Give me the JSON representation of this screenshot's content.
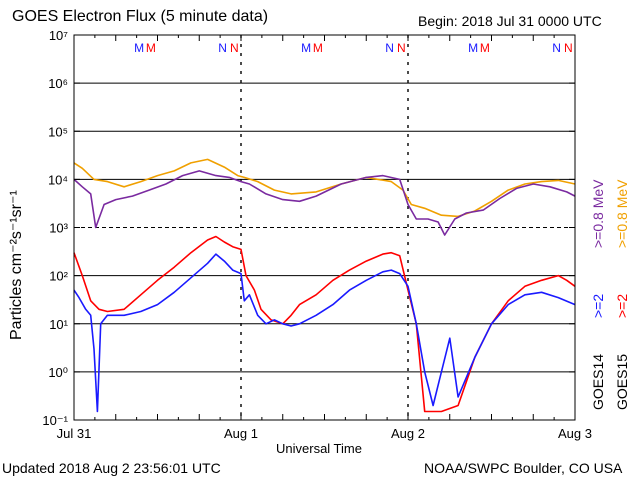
{
  "chart_data": {
    "type": "line",
    "title": "GOES Electron Flux (5 minute data)",
    "begin_label": "Begin: 2018 Jul 31 0000 UTC",
    "xlabel": "Universal Time",
    "ylabel": "Particles cm⁻²s⁻¹sr⁻¹",
    "y_scale": "log",
    "ylim": [
      0.1,
      10000000
    ],
    "y_ticks": [
      "10⁻¹",
      "10⁰",
      "10¹",
      "10²",
      "10³",
      "10⁴",
      "10⁵",
      "10⁶",
      "10⁷"
    ],
    "x_range_days": [
      0,
      3
    ],
    "x_ticks": [
      {
        "day": 0,
        "label": "Jul 31"
      },
      {
        "day": 1,
        "label": "Aug 1"
      },
      {
        "day": 2,
        "label": "Aug 2"
      },
      {
        "day": 3,
        "label": "Aug 3"
      }
    ],
    "grid": "horizontal at each decade; dashed line at 10³",
    "markers": [
      {
        "day": 0.39,
        "text": "M",
        "color": "#1a1aff"
      },
      {
        "day": 0.46,
        "text": "M",
        "color": "#ff0000"
      },
      {
        "day": 0.89,
        "text": "N",
        "color": "#1a1aff"
      },
      {
        "day": 0.96,
        "text": "N",
        "color": "#ff0000"
      },
      {
        "day": 1.39,
        "text": "M",
        "color": "#1a1aff"
      },
      {
        "day": 1.46,
        "text": "M",
        "color": "#ff0000"
      },
      {
        "day": 1.89,
        "text": "N",
        "color": "#1a1aff"
      },
      {
        "day": 1.96,
        "text": "N",
        "color": "#ff0000"
      },
      {
        "day": 2.39,
        "text": "M",
        "color": "#1a1aff"
      },
      {
        "day": 2.46,
        "text": "M",
        "color": "#ff0000"
      },
      {
        "day": 2.89,
        "text": "N",
        "color": "#1a1aff"
      },
      {
        "day": 2.96,
        "text": "N",
        "color": "#ff0000"
      }
    ],
    "legend": {
      "placement": "right side, vertical",
      "groups": [
        {
          "label": "GOES14",
          "channels": [
            {
              "text": ">=2",
              "color": "#1a1aff"
            },
            {
              "text": ">=0.8 MeV",
              "color": "#7a2aa0"
            }
          ]
        },
        {
          "label": "GOES15",
          "channels": [
            {
              "text": ">=2",
              "color": "#ff0000"
            },
            {
              "text": ">=0.8 MeV",
              "color": "#f0a000"
            }
          ]
        }
      ]
    },
    "series": [
      {
        "color": "#f0a000",
        "x": [
          0,
          0.05,
          0.12,
          0.2,
          0.3,
          0.4,
          0.5,
          0.6,
          0.7,
          0.8,
          0.9,
          0.98,
          1.02,
          1.1,
          1.2,
          1.3,
          1.45,
          1.6,
          1.75,
          1.9,
          1.97,
          2.02,
          2.1,
          2.2,
          2.3,
          2.4,
          2.5,
          2.6,
          2.7,
          2.8,
          2.9,
          3.0
        ],
        "y": [
          22000,
          17000,
          10000,
          9000,
          7000,
          9000,
          12000,
          15000,
          22000,
          26000,
          18000,
          12000,
          11000,
          9000,
          6000,
          5000,
          5500,
          8000,
          11000,
          9000,
          6000,
          3000,
          2500,
          1800,
          1700,
          2200,
          3500,
          6000,
          8000,
          9000,
          9500,
          8000
        ]
      },
      {
        "color": "#7a2aa0",
        "x": [
          0,
          0.05,
          0.1,
          0.13,
          0.18,
          0.25,
          0.35,
          0.45,
          0.55,
          0.65,
          0.75,
          0.85,
          0.93,
          1.0,
          1.05,
          1.15,
          1.25,
          1.35,
          1.45,
          1.6,
          1.75,
          1.85,
          1.95,
          2.0,
          2.05,
          2.12,
          2.18,
          2.22,
          2.28,
          2.35,
          2.45,
          2.55,
          2.65,
          2.75,
          2.85,
          2.95,
          3.0
        ],
        "y": [
          10000,
          7000,
          5000,
          1000,
          3000,
          3800,
          4500,
          6000,
          8000,
          12000,
          15000,
          12000,
          11000,
          9000,
          8000,
          5000,
          3800,
          3500,
          4500,
          8000,
          11000,
          12000,
          10000,
          3000,
          1500,
          1500,
          1300,
          700,
          1500,
          2000,
          2300,
          4000,
          6500,
          8000,
          7000,
          5500,
          4500
        ]
      },
      {
        "color": "#ff0000",
        "x": [
          0,
          0.05,
          0.1,
          0.15,
          0.2,
          0.3,
          0.4,
          0.5,
          0.6,
          0.7,
          0.8,
          0.85,
          0.9,
          0.95,
          1.0,
          1.03,
          1.08,
          1.12,
          1.18,
          1.25,
          1.3,
          1.35,
          1.45,
          1.55,
          1.65,
          1.75,
          1.85,
          1.9,
          1.95,
          2.0,
          2.05,
          2.1,
          2.15,
          2.2,
          2.3,
          2.4,
          2.5,
          2.6,
          2.7,
          2.8,
          2.9,
          2.95,
          3.0
        ],
        "y": [
          300,
          100,
          30,
          20,
          18,
          20,
          40,
          80,
          150,
          300,
          550,
          650,
          500,
          400,
          350,
          100,
          50,
          20,
          12,
          10,
          15,
          25,
          40,
          80,
          130,
          200,
          280,
          300,
          260,
          50,
          10,
          0.15,
          0.15,
          0.15,
          0.2,
          2,
          10,
          30,
          60,
          80,
          100,
          80,
          60
        ]
      },
      {
        "color": "#1a1aff",
        "x": [
          0,
          0.03,
          0.07,
          0.1,
          0.12,
          0.14,
          0.16,
          0.2,
          0.3,
          0.4,
          0.5,
          0.6,
          0.7,
          0.8,
          0.85,
          0.9,
          0.95,
          1.0,
          1.02,
          1.05,
          1.1,
          1.15,
          1.2,
          1.25,
          1.3,
          1.35,
          1.45,
          1.55,
          1.65,
          1.75,
          1.85,
          1.9,
          1.95,
          2.0,
          2.05,
          2.1,
          2.15,
          2.2,
          2.25,
          2.3,
          2.4,
          2.5,
          2.6,
          2.7,
          2.8,
          2.9,
          3.0
        ],
        "y": [
          50,
          35,
          20,
          15,
          3,
          0.15,
          10,
          15,
          15,
          18,
          25,
          45,
          90,
          180,
          280,
          200,
          130,
          110,
          30,
          40,
          15,
          10,
          12,
          10,
          9,
          10,
          15,
          25,
          50,
          80,
          120,
          130,
          110,
          60,
          10,
          1,
          0.2,
          1,
          5,
          0.3,
          2,
          10,
          25,
          40,
          45,
          35,
          25
        ]
      }
    ]
  },
  "footer": {
    "updated": "Updated 2018 Aug  2 23:56:01 UTC",
    "credit": "NOAA/SWPC Boulder, CO USA"
  }
}
